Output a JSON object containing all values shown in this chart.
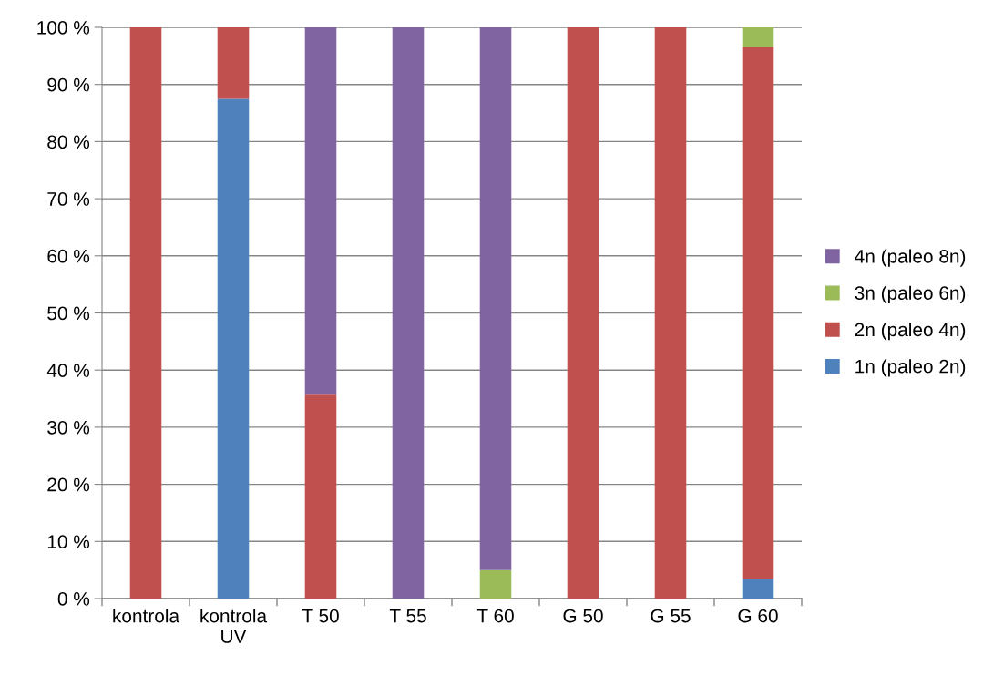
{
  "chart_data": {
    "type": "bar",
    "stacked": true,
    "categories": [
      "kontrola",
      "kontrola\nUV",
      "T 50",
      "T 55",
      "T 60",
      "G 50",
      "G 55",
      "G 60"
    ],
    "series": [
      {
        "name": "1n (paleo 2n)",
        "color": "#4f81bd",
        "values": [
          0,
          87.5,
          0,
          0,
          0,
          0,
          0,
          3.5
        ]
      },
      {
        "name": "2n (paleo 4n)",
        "color": "#c0504d",
        "values": [
          100,
          12.5,
          35.7,
          0,
          0,
          100,
          100,
          93
        ]
      },
      {
        "name": "3n (paleo 6n)",
        "color": "#9bbb59",
        "values": [
          0,
          0,
          0,
          0,
          5,
          0,
          0,
          3.5
        ]
      },
      {
        "name": "4n (paleo 8n)",
        "color": "#8064a2",
        "values": [
          0,
          0,
          64.3,
          100,
          95,
          0,
          0,
          0
        ]
      }
    ],
    "ylim": [
      0,
      100
    ],
    "yticks": [
      {
        "value": 0,
        "label": "0 %"
      },
      {
        "value": 10,
        "label": "10 %"
      },
      {
        "value": 20,
        "label": "20 %"
      },
      {
        "value": 30,
        "label": "30 %"
      },
      {
        "value": 40,
        "label": "40 %"
      },
      {
        "value": 50,
        "label": "50 %"
      },
      {
        "value": 60,
        "label": "60 %"
      },
      {
        "value": 70,
        "label": "70 %"
      },
      {
        "value": 80,
        "label": "80 %"
      },
      {
        "value": 90,
        "label": "90 %"
      },
      {
        "value": 100,
        "label": "100 %"
      }
    ],
    "grid": "y",
    "legend": "right"
  }
}
